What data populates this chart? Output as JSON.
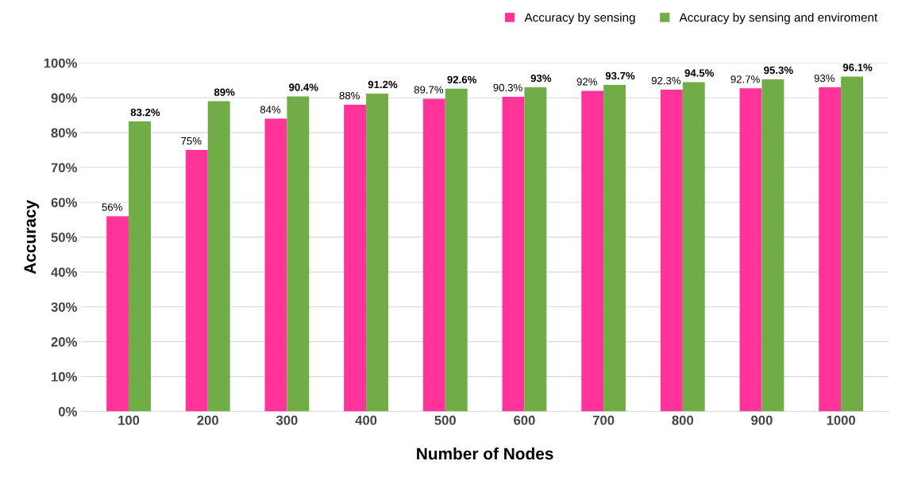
{
  "chart_data": {
    "type": "bar",
    "xlabel": "Number of Nodes",
    "ylabel": "Accuracy",
    "categories": [
      "100",
      "200",
      "300",
      "400",
      "500",
      "600",
      "700",
      "800",
      "900",
      "1000"
    ],
    "series": [
      {
        "name": "Accuracy by sensing",
        "color": "#ff3399",
        "values": [
          56,
          75,
          84,
          88,
          89.7,
          90.3,
          92,
          92.3,
          92.7,
          93
        ],
        "value_labels": [
          "56%",
          "75%",
          "84%",
          "88%",
          "89.7%",
          "90.3%",
          "92%",
          "92.3%",
          "92.7%",
          "93%"
        ]
      },
      {
        "name": "Accuracy by sensing and enviroment",
        "color": "#70ad47",
        "values": [
          83.2,
          89,
          90.4,
          91.2,
          92.6,
          93,
          93.7,
          94.5,
          95.3,
          96.1
        ],
        "value_labels": [
          "83.2%",
          "89%",
          "90.4%",
          "91.2%",
          "92.6%",
          "93%",
          "93.7%",
          "94.5%",
          "95.3%",
          "96.1%"
        ]
      }
    ],
    "ylim": [
      0,
      100
    ],
    "yticks": [
      {
        "value": 0,
        "label": "0%"
      },
      {
        "value": 10,
        "label": "10%"
      },
      {
        "value": 20,
        "label": "20%"
      },
      {
        "value": 30,
        "label": "30%"
      },
      {
        "value": 40,
        "label": "40%"
      },
      {
        "value": 50,
        "label": "50%"
      },
      {
        "value": 60,
        "label": "60%"
      },
      {
        "value": 70,
        "label": "70%"
      },
      {
        "value": 80,
        "label": "80%"
      },
      {
        "value": 90,
        "label": "90%"
      },
      {
        "value": 100,
        "label": "100%"
      }
    ],
    "grid": "y",
    "legend": "top right"
  }
}
